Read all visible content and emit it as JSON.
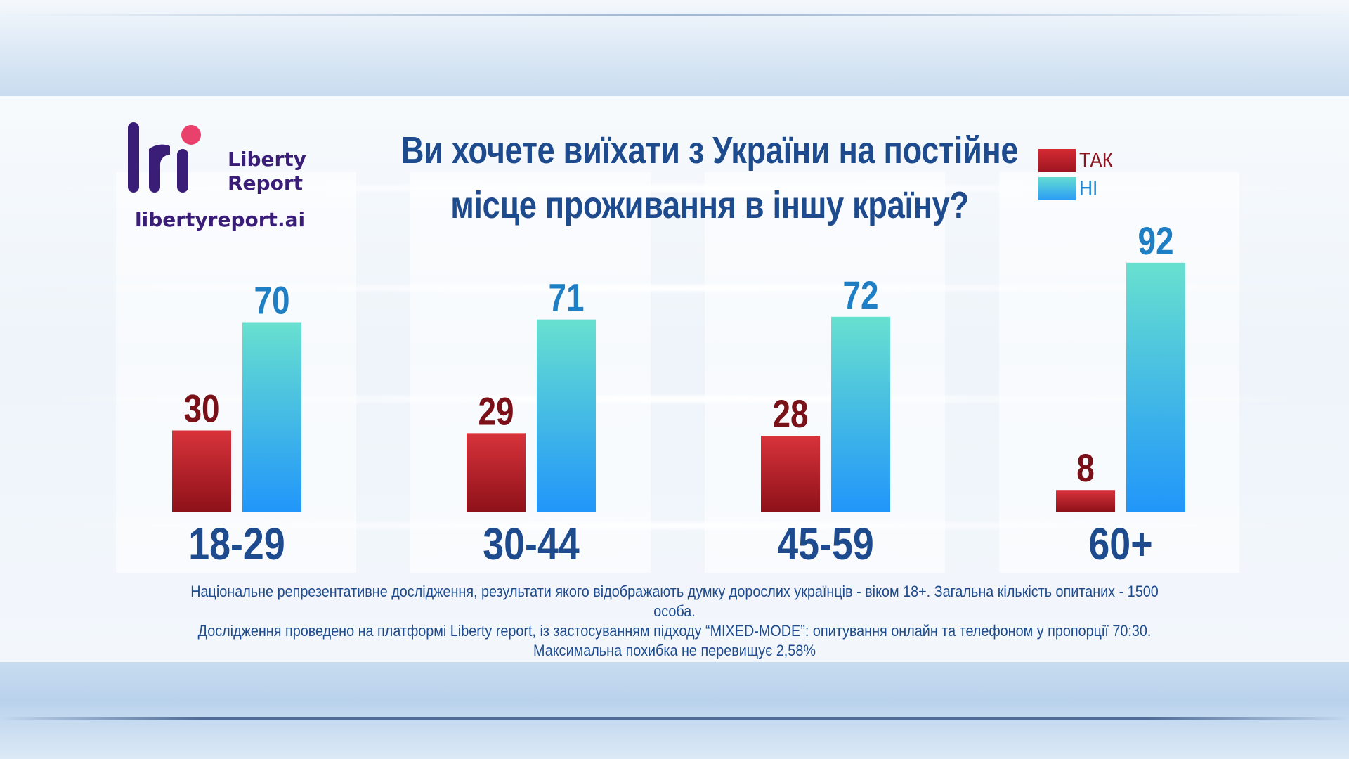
{
  "brand": {
    "name_line1": "Liberty",
    "name_line2": "Report",
    "url": "libertyreport.ai",
    "color_dark": "#3a1d77",
    "color_accent": "#e8416b"
  },
  "footnote": {
    "line1": "Національне репрезентативне дослідження, результати якого відображають думку дорослих українців - віком 18+. Загальна кількість опитаних - 1500 особа.",
    "line2": "Дослідження проведено на платформі Liberty report, із застосуванням підходу “MIXED-MODE”: опитування онлайн та телефоном у пропорції 70:30.",
    "line3": "Максимальна похибка не перевищує 2,58%"
  },
  "chart_data": {
    "type": "bar",
    "title_line1": "Ви хочете виїхати з України на постійне",
    "title_line2": "місце проживання в іншу країну?",
    "categories": [
      "18-29",
      "30-44",
      "45-59",
      "60+"
    ],
    "series": [
      {
        "name": "ТАК",
        "values": [
          30,
          29,
          28,
          8
        ],
        "color": "#b51f2a",
        "label_color": "#7a1018"
      },
      {
        "name": "НІ",
        "values": [
          70,
          71,
          72,
          92
        ],
        "color": "#2f9ff0",
        "label_color": "#1f7fc4"
      }
    ],
    "ylim": [
      0,
      100
    ],
    "legend_position": "top-right",
    "grid": false
  }
}
